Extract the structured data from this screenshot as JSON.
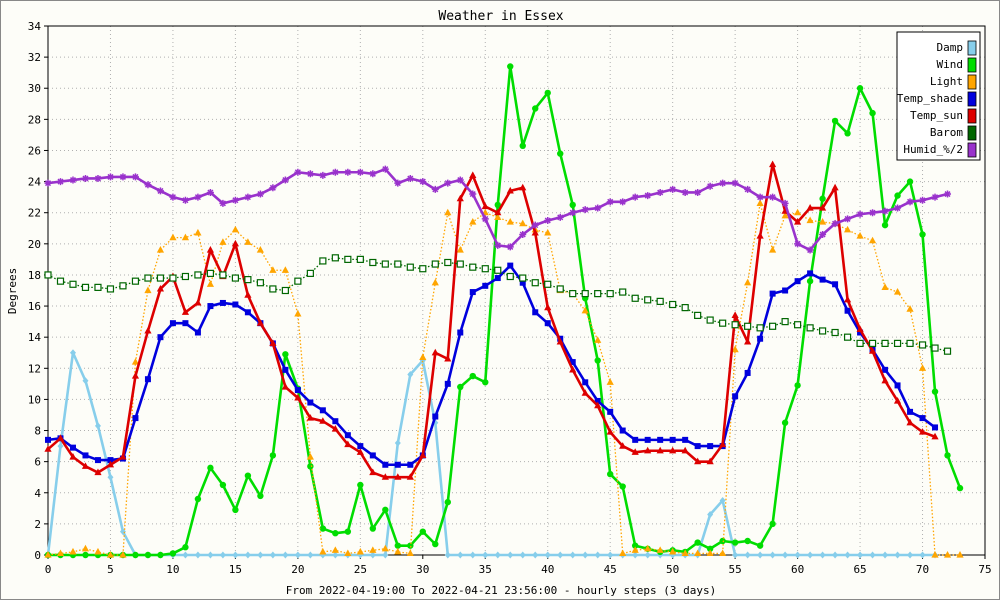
{
  "chart_data": {
    "type": "line",
    "title": "Weather in Essex",
    "xlabel": "From 2022-04-19:00 To 2022-04-21 23:56:00 - hourly steps (3 days)",
    "ylabel": "Degrees",
    "xlim": [
      0,
      75
    ],
    "ylim": [
      0,
      34
    ],
    "x_ticks": [
      0,
      5,
      10,
      15,
      20,
      25,
      30,
      35,
      40,
      45,
      50,
      55,
      60,
      65,
      70,
      75
    ],
    "y_ticks": [
      0,
      2,
      4,
      6,
      8,
      10,
      12,
      14,
      16,
      18,
      20,
      22,
      24,
      26,
      28,
      30,
      32,
      34
    ],
    "grid": true,
    "legend_position": "top-right",
    "series": [
      {
        "name": "Damp",
        "color": "#87ceeb",
        "marker": "diamond",
        "style": "solid",
        "values": [
          0,
          7,
          13,
          11.2,
          8.3,
          5,
          1.5,
          0,
          0,
          0,
          0,
          0,
          0,
          0,
          0,
          0,
          0,
          0,
          0,
          0,
          0,
          0,
          0,
          0,
          0,
          0,
          0,
          0,
          7.2,
          11.6,
          12.5,
          8.5,
          0,
          0,
          0,
          0,
          0,
          0,
          0,
          0,
          0,
          0,
          0,
          0,
          0,
          0,
          0,
          0,
          0,
          0,
          0,
          0,
          0,
          2.6,
          3.5,
          0,
          0,
          0,
          0,
          0,
          0,
          0,
          0,
          0,
          0,
          0,
          0,
          0,
          0,
          0,
          0,
          0
        ]
      },
      {
        "name": "Wind",
        "color": "#00dd00",
        "marker": "circle",
        "style": "solid",
        "values": [
          0,
          0,
          0,
          0,
          0,
          0,
          0,
          0,
          0,
          0,
          0.1,
          0.5,
          3.6,
          5.6,
          4.5,
          2.9,
          5.1,
          3.8,
          6.4,
          12.9,
          10.7,
          5.7,
          1.7,
          1.4,
          1.5,
          4.5,
          1.7,
          2.9,
          0.6,
          0.6,
          1.5,
          0.7,
          3.4,
          10.8,
          11.5,
          11.1,
          22.5,
          31.4,
          26.3,
          28.7,
          29.7,
          25.8,
          22.5,
          16.5,
          12.5,
          5.2,
          4.4,
          0.6,
          0.4,
          0.2,
          0.3,
          0.2,
          0.8,
          0.4,
          0.9,
          0.8,
          0.9,
          0.6,
          2,
          8.5,
          10.9,
          17.6,
          22.9,
          27.9,
          27.1,
          30,
          28.4,
          21.2,
          23.1,
          24,
          20.6,
          10.5,
          6.4,
          4.3
        ]
      },
      {
        "name": "Light",
        "color": "#ffa500",
        "marker": "triangle",
        "style": "dotted",
        "values": [
          0,
          0.1,
          0.2,
          0.4,
          0.2,
          0,
          0,
          12.4,
          17,
          19.6,
          20.4,
          20.4,
          20.7,
          17.4,
          20.1,
          20.9,
          20.1,
          19.6,
          18.3,
          18.3,
          15.5,
          6.3,
          0.2,
          0.3,
          0.1,
          0.2,
          0.3,
          0.4,
          0.2,
          0.1,
          12.7,
          17.5,
          22,
          19.6,
          21.4,
          22,
          21.7,
          21.4,
          21.3,
          20.9,
          20.7,
          17,
          16.8,
          15.7,
          13.8,
          11.1,
          0.1,
          0.3,
          0.4,
          0.3,
          0.2,
          0.1,
          0.1,
          0.1,
          0.1,
          13.2,
          17.5,
          22.6,
          19.6,
          21.8,
          22,
          21.5,
          21.4,
          21.3,
          20.9,
          20.5,
          20.2,
          17.2,
          16.9,
          15.8,
          12,
          0,
          0,
          0
        ]
      },
      {
        "name": "Temp_shade",
        "color": "#0000dd",
        "marker": "square",
        "style": "solid",
        "values": [
          7.4,
          7.5,
          6.9,
          6.4,
          6.1,
          6.1,
          6.2,
          8.8,
          11.3,
          14,
          14.9,
          14.9,
          14.3,
          16,
          16.2,
          16.1,
          15.6,
          14.9,
          13.6,
          11.9,
          10.6,
          9.8,
          9.3,
          8.6,
          7.7,
          7,
          6.4,
          5.8,
          5.8,
          5.8,
          6.4,
          8.9,
          11,
          14.3,
          16.9,
          17.3,
          17.8,
          18.6,
          17.5,
          15.6,
          14.9,
          13.9,
          12.4,
          11.1,
          9.9,
          9.2,
          8,
          7.4,
          7.4,
          7.4,
          7.4,
          7.4,
          7,
          7,
          7,
          10.2,
          11.7,
          13.9,
          16.8,
          17,
          17.6,
          18.1,
          17.7,
          17.4,
          15.7,
          14.3,
          13.2,
          11.9,
          10.9,
          9.2,
          8.8,
          8.2
        ]
      },
      {
        "name": "Temp_sun",
        "color": "#dd0000",
        "marker": "triangle",
        "style": "solid",
        "values": [
          6.8,
          7.5,
          6.3,
          5.7,
          5.3,
          5.8,
          6.3,
          11.5,
          14.4,
          17.1,
          17.9,
          15.6,
          16.2,
          19.6,
          17.9,
          20,
          16.7,
          14.9,
          13.6,
          10.8,
          10.1,
          8.8,
          8.6,
          8.1,
          7.1,
          6.6,
          5.3,
          5,
          5,
          5,
          6.4,
          13,
          12.6,
          22.9,
          24.4,
          22.4,
          22,
          23.4,
          23.6,
          20.7,
          15.9,
          13.7,
          11.9,
          10.4,
          9.6,
          7.9,
          7,
          6.6,
          6.7,
          6.7,
          6.7,
          6.7,
          6,
          6,
          7.1,
          15.4,
          13.7,
          20.5,
          25.1,
          22.1,
          21.4,
          22.3,
          22.3,
          23.6,
          16.4,
          14.5,
          13.1,
          11.2,
          9.9,
          8.5,
          7.9,
          7.6
        ]
      },
      {
        "name": "Barom",
        "color": "#006600",
        "marker": "square-open",
        "style": "dotted",
        "values": [
          18,
          17.6,
          17.4,
          17.2,
          17.2,
          17.1,
          17.3,
          17.6,
          17.8,
          17.8,
          17.8,
          17.9,
          18,
          18.1,
          18,
          17.8,
          17.7,
          17.5,
          17.1,
          17,
          17.6,
          18.1,
          18.9,
          19.1,
          19,
          19,
          18.8,
          18.7,
          18.7,
          18.5,
          18.4,
          18.7,
          18.8,
          18.7,
          18.5,
          18.4,
          18.3,
          17.9,
          17.8,
          17.5,
          17.4,
          17.1,
          16.8,
          16.8,
          16.8,
          16.8,
          16.9,
          16.5,
          16.4,
          16.3,
          16.1,
          15.9,
          15.4,
          15.1,
          14.9,
          14.8,
          14.7,
          14.6,
          14.7,
          15,
          14.8,
          14.6,
          14.4,
          14.3,
          14,
          13.6,
          13.6,
          13.6,
          13.6,
          13.6,
          13.5,
          13.3,
          13.1
        ]
      },
      {
        "name": "Humid_%/2",
        "color": "#9932cc",
        "marker": "star",
        "style": "solid",
        "values": [
          23.9,
          24,
          24.1,
          24.2,
          24.2,
          24.3,
          24.3,
          24.3,
          23.8,
          23.4,
          23,
          22.8,
          23,
          23.3,
          22.6,
          22.8,
          23,
          23.2,
          23.6,
          24.1,
          24.6,
          24.5,
          24.4,
          24.6,
          24.6,
          24.6,
          24.5,
          24.8,
          23.9,
          24.2,
          24,
          23.5,
          23.9,
          24.1,
          23.2,
          21.6,
          19.9,
          19.8,
          20.6,
          21.2,
          21.5,
          21.7,
          22,
          22.2,
          22.3,
          22.7,
          22.7,
          23,
          23.1,
          23.3,
          23.5,
          23.3,
          23.3,
          23.7,
          23.9,
          23.9,
          23.5,
          23,
          23,
          22.6,
          20,
          19.6,
          20.6,
          21.3,
          21.6,
          21.9,
          22,
          22.1,
          22.3,
          22.7,
          22.8,
          23,
          23.2
        ]
      }
    ]
  }
}
